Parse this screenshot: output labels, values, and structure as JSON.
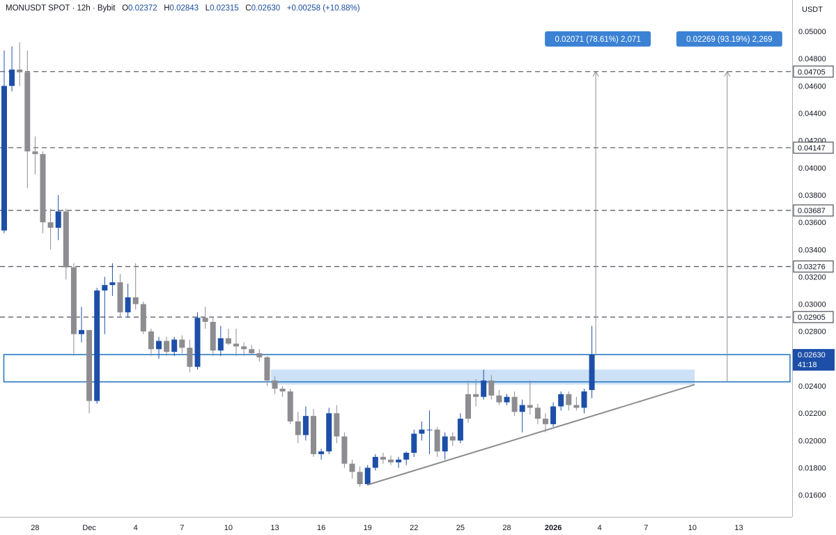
{
  "header": {
    "symbol": "MONUSDT SPOT",
    "interval": "12h",
    "exchange": "Bybit",
    "open_label": "O",
    "open": "0.02372",
    "high_label": "H",
    "high": "0.02843",
    "low_label": "L",
    "low": "0.02315",
    "close_label": "C",
    "close": "0.02630",
    "change": "+0.00258 (+10.88%)"
  },
  "chart_data": {
    "type": "candlestick",
    "currency": "USDT",
    "ylim": [
      0.0144,
      0.0523
    ],
    "y_ticks": [
      "0.05000",
      "0.04800",
      "0.04600",
      "0.04400",
      "0.04200",
      "0.04000",
      "0.03800",
      "0.03600",
      "0.03400",
      "0.03200",
      "0.03000",
      "0.02800",
      "0.02400",
      "0.02200",
      "0.02000",
      "0.01800",
      "0.01600"
    ],
    "y_tick_values": [
      0.05,
      0.048,
      0.046,
      0.044,
      0.042,
      0.04,
      0.038,
      0.036,
      0.034,
      0.032,
      0.03,
      0.028,
      0.024,
      0.022,
      0.02,
      0.018,
      0.016
    ],
    "x_ticks": [
      {
        "label": "28",
        "i": 4,
        "bold": false
      },
      {
        "label": "Dec",
        "i": 11,
        "bold": false
      },
      {
        "label": "4",
        "i": 17,
        "bold": false
      },
      {
        "label": "7",
        "i": 23,
        "bold": false
      },
      {
        "label": "10",
        "i": 29,
        "bold": false
      },
      {
        "label": "13",
        "i": 35,
        "bold": false
      },
      {
        "label": "16",
        "i": 41,
        "bold": false
      },
      {
        "label": "19",
        "i": 47,
        "bold": false
      },
      {
        "label": "22",
        "i": 53,
        "bold": false
      },
      {
        "label": "25",
        "i": 59,
        "bold": false
      },
      {
        "label": "28",
        "i": 65,
        "bold": false
      },
      {
        "label": "2026",
        "i": 71,
        "bold": true
      },
      {
        "label": "4",
        "i": 77,
        "bold": false
      },
      {
        "label": "7",
        "i": 83,
        "bold": false
      },
      {
        "label": "10",
        "i": 89,
        "bold": false
      },
      {
        "label": "13",
        "i": 95,
        "bold": false
      }
    ],
    "candles": [
      {
        "o": 0.0354,
        "h": 0.0486,
        "l": 0.0352,
        "c": 0.046,
        "dir": "up"
      },
      {
        "o": 0.046,
        "h": 0.0489,
        "l": 0.0456,
        "c": 0.0472,
        "dir": "up"
      },
      {
        "o": 0.0472,
        "h": 0.0492,
        "l": 0.046,
        "c": 0.047,
        "dir": "down"
      },
      {
        "o": 0.047,
        "h": 0.0486,
        "l": 0.0385,
        "c": 0.0412,
        "dir": "down"
      },
      {
        "o": 0.0412,
        "h": 0.0423,
        "l": 0.0395,
        "c": 0.041,
        "dir": "down"
      },
      {
        "o": 0.041,
        "h": 0.0412,
        "l": 0.0352,
        "c": 0.036,
        "dir": "down"
      },
      {
        "o": 0.036,
        "h": 0.037,
        "l": 0.034,
        "c": 0.0356,
        "dir": "down"
      },
      {
        "o": 0.0356,
        "h": 0.038,
        "l": 0.0347,
        "c": 0.0368,
        "dir": "up"
      },
      {
        "o": 0.0368,
        "h": 0.037,
        "l": 0.0318,
        "c": 0.0327,
        "dir": "down"
      },
      {
        "o": 0.0327,
        "h": 0.033,
        "l": 0.0262,
        "c": 0.0278,
        "dir": "down"
      },
      {
        "o": 0.0278,
        "h": 0.0298,
        "l": 0.0272,
        "c": 0.0281,
        "dir": "up"
      },
      {
        "o": 0.0281,
        "h": 0.0281,
        "l": 0.022,
        "c": 0.0229,
        "dir": "down"
      },
      {
        "o": 0.0229,
        "h": 0.0312,
        "l": 0.0227,
        "c": 0.031,
        "dir": "up"
      },
      {
        "o": 0.031,
        "h": 0.032,
        "l": 0.0278,
        "c": 0.0314,
        "dir": "up"
      },
      {
        "o": 0.0314,
        "h": 0.033,
        "l": 0.0306,
        "c": 0.0316,
        "dir": "up"
      },
      {
        "o": 0.0316,
        "h": 0.0322,
        "l": 0.029,
        "c": 0.0294,
        "dir": "down"
      },
      {
        "o": 0.0294,
        "h": 0.0315,
        "l": 0.029,
        "c": 0.0305,
        "dir": "up"
      },
      {
        "o": 0.0305,
        "h": 0.033,
        "l": 0.0296,
        "c": 0.03,
        "dir": "down"
      },
      {
        "o": 0.03,
        "h": 0.0302,
        "l": 0.0278,
        "c": 0.028,
        "dir": "down"
      },
      {
        "o": 0.028,
        "h": 0.0282,
        "l": 0.0262,
        "c": 0.0267,
        "dir": "down"
      },
      {
        "o": 0.0267,
        "h": 0.0276,
        "l": 0.026,
        "c": 0.0273,
        "dir": "up"
      },
      {
        "o": 0.0273,
        "h": 0.0276,
        "l": 0.0262,
        "c": 0.0265,
        "dir": "down"
      },
      {
        "o": 0.0265,
        "h": 0.0276,
        "l": 0.0262,
        "c": 0.0274,
        "dir": "up"
      },
      {
        "o": 0.0274,
        "h": 0.0277,
        "l": 0.0264,
        "c": 0.0268,
        "dir": "down"
      },
      {
        "o": 0.0268,
        "h": 0.0274,
        "l": 0.025,
        "c": 0.0254,
        "dir": "down"
      },
      {
        "o": 0.0254,
        "h": 0.0294,
        "l": 0.0252,
        "c": 0.029,
        "dir": "up"
      },
      {
        "o": 0.029,
        "h": 0.0298,
        "l": 0.0282,
        "c": 0.0287,
        "dir": "down"
      },
      {
        "o": 0.0287,
        "h": 0.029,
        "l": 0.0262,
        "c": 0.0266,
        "dir": "down"
      },
      {
        "o": 0.0266,
        "h": 0.0284,
        "l": 0.0262,
        "c": 0.0275,
        "dir": "up"
      },
      {
        "o": 0.0275,
        "h": 0.0282,
        "l": 0.027,
        "c": 0.0271,
        "dir": "down"
      },
      {
        "o": 0.0271,
        "h": 0.0282,
        "l": 0.0262,
        "c": 0.0269,
        "dir": "down"
      },
      {
        "o": 0.0269,
        "h": 0.0272,
        "l": 0.0262,
        "c": 0.0267,
        "dir": "down"
      },
      {
        "o": 0.0267,
        "h": 0.027,
        "l": 0.0263,
        "c": 0.0264,
        "dir": "down"
      },
      {
        "o": 0.0264,
        "h": 0.0267,
        "l": 0.0258,
        "c": 0.0261,
        "dir": "down"
      },
      {
        "o": 0.0261,
        "h": 0.0262,
        "l": 0.024,
        "c": 0.0244,
        "dir": "down"
      },
      {
        "o": 0.0244,
        "h": 0.0247,
        "l": 0.0234,
        "c": 0.0238,
        "dir": "down"
      },
      {
        "o": 0.0238,
        "h": 0.024,
        "l": 0.0232,
        "c": 0.0236,
        "dir": "down"
      },
      {
        "o": 0.0236,
        "h": 0.0238,
        "l": 0.0212,
        "c": 0.0214,
        "dir": "down"
      },
      {
        "o": 0.0214,
        "h": 0.0221,
        "l": 0.0198,
        "c": 0.0204,
        "dir": "down"
      },
      {
        "o": 0.0204,
        "h": 0.0225,
        "l": 0.02,
        "c": 0.0218,
        "dir": "up"
      },
      {
        "o": 0.0218,
        "h": 0.0223,
        "l": 0.0188,
        "c": 0.019,
        "dir": "down"
      },
      {
        "o": 0.019,
        "h": 0.0194,
        "l": 0.0186,
        "c": 0.0192,
        "dir": "up"
      },
      {
        "o": 0.0192,
        "h": 0.0224,
        "l": 0.019,
        "c": 0.022,
        "dir": "up"
      },
      {
        "o": 0.022,
        "h": 0.0226,
        "l": 0.0198,
        "c": 0.0203,
        "dir": "down"
      },
      {
        "o": 0.0203,
        "h": 0.0206,
        "l": 0.018,
        "c": 0.0183,
        "dir": "down"
      },
      {
        "o": 0.0183,
        "h": 0.0186,
        "l": 0.0172,
        "c": 0.0177,
        "dir": "down"
      },
      {
        "o": 0.0177,
        "h": 0.0181,
        "l": 0.0166,
        "c": 0.0168,
        "dir": "down"
      },
      {
        "o": 0.0168,
        "h": 0.0182,
        "l": 0.0167,
        "c": 0.018,
        "dir": "up"
      },
      {
        "o": 0.018,
        "h": 0.019,
        "l": 0.0178,
        "c": 0.0188,
        "dir": "up"
      },
      {
        "o": 0.0188,
        "h": 0.0191,
        "l": 0.0183,
        "c": 0.0186,
        "dir": "down"
      },
      {
        "o": 0.0186,
        "h": 0.0189,
        "l": 0.0182,
        "c": 0.0184,
        "dir": "down"
      },
      {
        "o": 0.0184,
        "h": 0.0188,
        "l": 0.018,
        "c": 0.0186,
        "dir": "up"
      },
      {
        "o": 0.0186,
        "h": 0.0192,
        "l": 0.0182,
        "c": 0.0191,
        "dir": "up"
      },
      {
        "o": 0.0191,
        "h": 0.0208,
        "l": 0.0188,
        "c": 0.0205,
        "dir": "up"
      },
      {
        "o": 0.0205,
        "h": 0.0214,
        "l": 0.02,
        "c": 0.0208,
        "dir": "up"
      },
      {
        "o": 0.0208,
        "h": 0.0222,
        "l": 0.019,
        "c": 0.0208,
        "dir": "up"
      },
      {
        "o": 0.0208,
        "h": 0.021,
        "l": 0.0188,
        "c": 0.0192,
        "dir": "down"
      },
      {
        "o": 0.0192,
        "h": 0.0206,
        "l": 0.0186,
        "c": 0.0203,
        "dir": "up"
      },
      {
        "o": 0.0203,
        "h": 0.0206,
        "l": 0.0196,
        "c": 0.02,
        "dir": "down"
      },
      {
        "o": 0.02,
        "h": 0.022,
        "l": 0.0198,
        "c": 0.0216,
        "dir": "up"
      },
      {
        "o": 0.0216,
        "h": 0.0244,
        "l": 0.0213,
        "c": 0.0234,
        "dir": "down"
      },
      {
        "o": 0.0234,
        "h": 0.0245,
        "l": 0.0225,
        "c": 0.0232,
        "dir": "down"
      },
      {
        "o": 0.0232,
        "h": 0.0252,
        "l": 0.023,
        "c": 0.0244,
        "dir": "up"
      },
      {
        "o": 0.0244,
        "h": 0.0248,
        "l": 0.023,
        "c": 0.0233,
        "dir": "down"
      },
      {
        "o": 0.0233,
        "h": 0.0237,
        "l": 0.0226,
        "c": 0.0228,
        "dir": "down"
      },
      {
        "o": 0.0228,
        "h": 0.0234,
        "l": 0.0226,
        "c": 0.0232,
        "dir": "up"
      },
      {
        "o": 0.0232,
        "h": 0.0236,
        "l": 0.0218,
        "c": 0.0221,
        "dir": "down"
      },
      {
        "o": 0.0221,
        "h": 0.023,
        "l": 0.0206,
        "c": 0.0226,
        "dir": "up"
      },
      {
        "o": 0.0226,
        "h": 0.0244,
        "l": 0.0219,
        "c": 0.0224,
        "dir": "down"
      },
      {
        "o": 0.0224,
        "h": 0.0227,
        "l": 0.0212,
        "c": 0.0216,
        "dir": "down"
      },
      {
        "o": 0.0216,
        "h": 0.022,
        "l": 0.0206,
        "c": 0.0212,
        "dir": "down"
      },
      {
        "o": 0.0212,
        "h": 0.0228,
        "l": 0.021,
        "c": 0.0225,
        "dir": "up"
      },
      {
        "o": 0.0225,
        "h": 0.0236,
        "l": 0.0222,
        "c": 0.0234,
        "dir": "up"
      },
      {
        "o": 0.0234,
        "h": 0.0236,
        "l": 0.0222,
        "c": 0.0226,
        "dir": "down"
      },
      {
        "o": 0.0226,
        "h": 0.0232,
        "l": 0.0222,
        "c": 0.0224,
        "dir": "down"
      },
      {
        "o": 0.0224,
        "h": 0.0238,
        "l": 0.022,
        "c": 0.0236,
        "dir": "up"
      },
      {
        "o": 0.0237,
        "h": 0.0284,
        "l": 0.0231,
        "c": 0.0263,
        "dir": "up"
      }
    ],
    "levels": [
      {
        "value": 0.04705,
        "label": "0.04705"
      },
      {
        "value": 0.04147,
        "label": "0.04147"
      },
      {
        "value": 0.03687,
        "label": "0.03687"
      },
      {
        "value": 0.03276,
        "label": "0.03276"
      },
      {
        "value": 0.02905,
        "label": "0.02905"
      }
    ],
    "current_price": {
      "label": "0.02630",
      "value": 0.0263,
      "countdown": "41:18"
    },
    "zone_box": {
      "top": 0.0263,
      "bottom": 0.0243,
      "from_i": 0
    },
    "shaded_zone": {
      "top": 0.0252,
      "bottom": 0.0241,
      "from_i": 34.5,
      "to_i": 89.3
    },
    "trendline": {
      "from": {
        "i": 47,
        "v": 0.01675
      },
      "to": {
        "i": 89.3,
        "v": 0.0241
      }
    },
    "measurements": [
      {
        "label": "0.02071 (78.61%) 2,071",
        "i": 76.5,
        "from": 0.0263,
        "to": 0.04705
      },
      {
        "label": "0.02269 (93.19%) 2,269",
        "i": 93.5,
        "from": 0.0243,
        "to": 0.04705
      }
    ]
  },
  "colors": {
    "up_candle": "#1d4fa8",
    "down_candle": "#8c8c91",
    "level_line": "#5d606b",
    "zone_border": "#2a79c6",
    "shaded_zone": "#bcd7f3",
    "label_bg": "#3b82d4",
    "trendline": "#8c8c91",
    "axis_text": "#131722"
  }
}
